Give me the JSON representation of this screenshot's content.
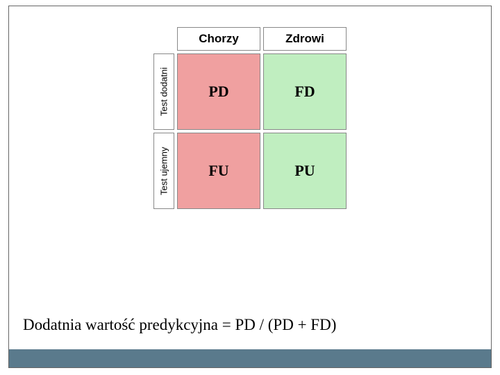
{
  "matrix": {
    "type": "table",
    "col_headers": [
      "Chorzy",
      "Zdrowi"
    ],
    "row_headers": [
      "Test dodatni",
      "Test ujemny"
    ],
    "cells": [
      {
        "label": "PD",
        "bg": "#f0a0a0"
      },
      {
        "label": "FD",
        "bg": "#c0eec0"
      },
      {
        "label": "FU",
        "bg": "#f0a0a0"
      },
      {
        "label": "PU",
        "bg": "#c0eec0"
      }
    ],
    "header_fontsize": 17,
    "row_header_fontsize": 13,
    "cell_fontsize": 22,
    "border_color": "#888888",
    "background_color": "#ffffff"
  },
  "formula_text": "Dodatnia wartość predykcyjna = PD / (PD + FD)",
  "formula_fontsize": 23,
  "bottom_band_color": "#5a7a8c",
  "frame_border_color": "#666666"
}
